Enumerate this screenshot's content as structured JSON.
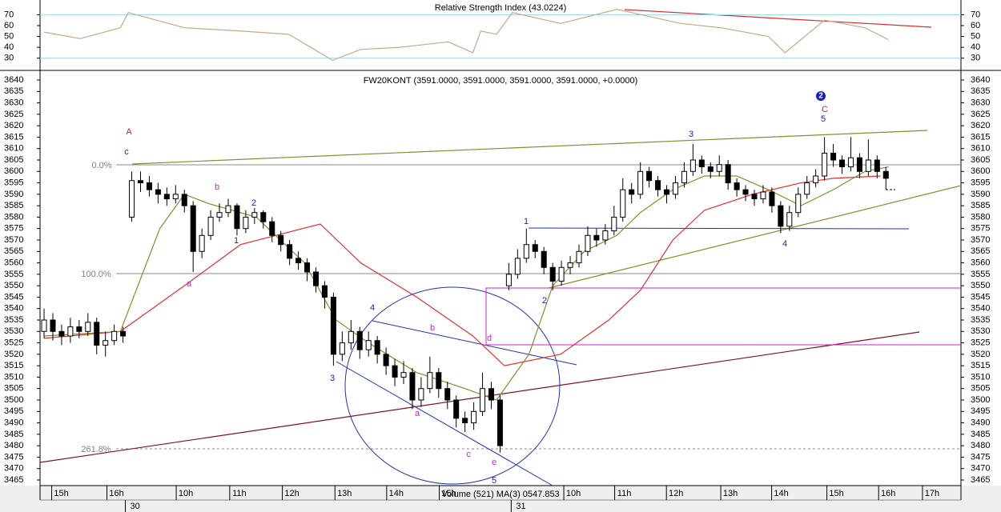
{
  "chart_data": [
    {
      "type": "line",
      "title": "Relative Strength Index (43.0224)",
      "ylim": [
        18.7,
        83.6
      ],
      "yticks": [
        30,
        40,
        50,
        60,
        70
      ],
      "grid_lines": [
        30,
        70
      ],
      "grid_color": "#9fdcf0",
      "xlim": [
        -0.46,
        104.56
      ],
      "series": [
        {
          "color": "#c8a888",
          "x": [
            0,
            4.1,
            8.7,
            9.6,
            16,
            22.4,
            27.9,
            32.9,
            36.1,
            40.6,
            46.1,
            48.9,
            49.8,
            51.6,
            53.4,
            58.9,
            65.3,
            72.6,
            77.2,
            82.6,
            84.5,
            89,
            93.6,
            96.3
          ],
          "values": [
            54,
            48,
            58,
            72,
            58,
            55,
            52,
            28,
            38,
            40,
            45,
            35,
            55,
            52,
            72,
            62,
            75,
            62,
            58,
            50,
            35,
            65,
            58,
            47
          ]
        }
      ]
    },
    {
      "type": "candlestick",
      "title": "FW20KONT (3591.0000, 3591.0000, 3591.0000, 3591.0000, +0.0000)",
      "ylim": [
        3462.55,
        3644.2
      ],
      "yticks": [
        3465,
        3470,
        3475,
        3480,
        3485,
        3490,
        3495,
        3500,
        3505,
        3510,
        3515,
        3520,
        3525,
        3530,
        3535,
        3540,
        3545,
        3550,
        3555,
        3560,
        3565,
        3570,
        3575,
        3580,
        3585,
        3590,
        3595,
        3600,
        3605,
        3610,
        3615,
        3620,
        3625,
        3630,
        3635,
        3640
      ],
      "xlim": [
        -0.46,
        104.56
      ],
      "xticks": [
        {
          "value": 1.6,
          "label": "15h"
        },
        {
          "value": 7.9,
          "label": "16h"
        },
        {
          "value": 15.8,
          "label": "10h"
        },
        {
          "value": 21.9,
          "label": "11h"
        },
        {
          "value": 27.9,
          "label": "12h"
        },
        {
          "value": 33.9,
          "label": "13h"
        },
        {
          "value": 39.8,
          "label": "14h"
        },
        {
          "value": 45.8,
          "label": "15h"
        },
        {
          "value": 60,
          "label": "10h"
        },
        {
          "value": 65.8,
          "label": "11h"
        },
        {
          "value": 71.7,
          "label": "12h"
        },
        {
          "value": 77.9,
          "label": "13h"
        },
        {
          "value": 83.7,
          "label": "14h"
        },
        {
          "value": 90,
          "label": "15h"
        },
        {
          "value": 95.9,
          "label": "16h"
        },
        {
          "value": 100.9,
          "label": "17h"
        }
      ],
      "date_ticks": [
        {
          "value": 10,
          "label": "30"
        },
        {
          "value": 54,
          "label": "31"
        }
      ],
      "volume_label": "Volume (521) MA(3) 0547.853",
      "up_color": "#ffffff",
      "down_color": "#000000",
      "ohlc": [
        [
          3530,
          3540,
          3527,
          3535
        ],
        [
          3535,
          3538,
          3526,
          3530
        ],
        [
          3530,
          3533,
          3524,
          3528
        ],
        [
          3528,
          3536,
          3525,
          3532
        ],
        [
          3532,
          3535,
          3527,
          3530
        ],
        [
          3530,
          3538,
          3528,
          3534
        ],
        [
          3534,
          3536,
          3520,
          3524
        ],
        [
          3524,
          3530,
          3519,
          3526
        ],
        [
          3526,
          3533,
          3524,
          3530
        ],
        [
          3530,
          3532,
          3525,
          3528
        ],
        [
          3580,
          3600,
          3578,
          3596
        ],
        [
          3596,
          3600,
          3591,
          3595
        ],
        [
          3595,
          3598,
          3589,
          3592
        ],
        [
          3592,
          3595,
          3586,
          3590
        ],
        [
          3590,
          3593,
          3585,
          3588
        ],
        [
          3588,
          3594,
          3586,
          3590
        ],
        [
          3590,
          3592,
          3582,
          3585
        ],
        [
          3585,
          3587,
          3556,
          3565
        ],
        [
          3565,
          3575,
          3562,
          3572
        ],
        [
          3572,
          3583,
          3570,
          3580
        ],
        [
          3580,
          3586,
          3578,
          3582
        ],
        [
          3582,
          3588,
          3580,
          3585
        ],
        [
          3585,
          3586,
          3572,
          3575
        ],
        [
          3575,
          3583,
          3573,
          3580
        ],
        [
          3580,
          3584,
          3577,
          3582
        ],
        [
          3582,
          3583,
          3575,
          3578
        ],
        [
          3578,
          3580,
          3569,
          3572
        ],
        [
          3572,
          3574,
          3565,
          3568
        ],
        [
          3568,
          3570,
          3559,
          3562
        ],
        [
          3562,
          3565,
          3557,
          3560
        ],
        [
          3560,
          3562,
          3552,
          3556
        ],
        [
          3556,
          3558,
          3547,
          3550
        ],
        [
          3550,
          3552,
          3540,
          3545
        ],
        [
          3545,
          3547,
          3515,
          3520
        ],
        [
          3520,
          3530,
          3517,
          3525
        ],
        [
          3525,
          3535,
          3522,
          3530
        ],
        [
          3530,
          3532,
          3518,
          3522
        ],
        [
          3522,
          3530,
          3519,
          3526
        ],
        [
          3526,
          3528,
          3516,
          3520
        ],
        [
          3520,
          3523,
          3511,
          3515
        ],
        [
          3515,
          3518,
          3506,
          3510
        ],
        [
          3510,
          3517,
          3507,
          3512
        ],
        [
          3512,
          3514,
          3496,
          3500
        ],
        [
          3500,
          3510,
          3497,
          3505
        ],
        [
          3505,
          3519,
          3503,
          3512
        ],
        [
          3512,
          3514,
          3501,
          3505
        ],
        [
          3505,
          3508,
          3496,
          3500
        ],
        [
          3500,
          3502,
          3488,
          3492
        ],
        [
          3492,
          3495,
          3486,
          3490
        ],
        [
          3490,
          3499,
          3487,
          3495
        ],
        [
          3495,
          3512,
          3493,
          3505
        ],
        [
          3505,
          3508,
          3496,
          3500
        ],
        [
          3500,
          3502,
          3477,
          3480
        ],
        [
          3550,
          3560,
          3548,
          3555
        ],
        [
          3555,
          3566,
          3553,
          3562
        ],
        [
          3562,
          3575,
          3560,
          3568
        ],
        [
          3568,
          3570,
          3562,
          3565
        ],
        [
          3565,
          3567,
          3555,
          3558
        ],
        [
          3558,
          3560,
          3548,
          3552
        ],
        [
          3552,
          3561,
          3550,
          3558
        ],
        [
          3558,
          3563,
          3555,
          3560
        ],
        [
          3560,
          3568,
          3558,
          3565
        ],
        [
          3565,
          3576,
          3563,
          3572
        ],
        [
          3572,
          3575,
          3567,
          3570
        ],
        [
          3570,
          3577,
          3568,
          3574
        ],
        [
          3574,
          3585,
          3572,
          3580
        ],
        [
          3580,
          3597,
          3578,
          3592
        ],
        [
          3592,
          3595,
          3586,
          3590
        ],
        [
          3590,
          3604,
          3588,
          3600
        ],
        [
          3600,
          3602,
          3593,
          3596
        ],
        [
          3596,
          3598,
          3589,
          3592
        ],
        [
          3592,
          3594,
          3586,
          3590
        ],
        [
          3590,
          3598,
          3588,
          3595
        ],
        [
          3595,
          3604,
          3593,
          3600
        ],
        [
          3600,
          3612,
          3598,
          3605
        ],
        [
          3605,
          3607,
          3599,
          3602
        ],
        [
          3602,
          3604,
          3597,
          3600
        ],
        [
          3600,
          3607,
          3598,
          3603
        ],
        [
          3603,
          3605,
          3592,
          3595
        ],
        [
          3595,
          3597,
          3589,
          3592
        ],
        [
          3592,
          3594,
          3587,
          3590
        ],
        [
          3590,
          3592,
          3585,
          3588
        ],
        [
          3588,
          3594,
          3586,
          3591
        ],
        [
          3591,
          3593,
          3582,
          3585
        ],
        [
          3585,
          3587,
          3573,
          3576
        ],
        [
          3576,
          3585,
          3574,
          3582
        ],
        [
          3582,
          3593,
          3580,
          3590
        ],
        [
          3590,
          3598,
          3588,
          3595
        ],
        [
          3595,
          3601,
          3593,
          3598
        ],
        [
          3598,
          3615,
          3596,
          3608
        ],
        [
          3608,
          3612,
          3602,
          3605
        ],
        [
          3605,
          3607,
          3599,
          3602
        ],
        [
          3602,
          3615,
          3600,
          3606
        ],
        [
          3606,
          3608,
          3597,
          3600
        ],
        [
          3600,
          3614,
          3598,
          3605
        ],
        [
          3605,
          3607,
          3597,
          3600
        ],
        [
          3600,
          3602,
          3592,
          3597
        ]
      ],
      "series": [
        {
          "color": "#e03030",
          "x": [
            0,
            8.7,
            16,
            22.4,
            31.5,
            36.1,
            42.5,
            48.9,
            52.5,
            58.9,
            64.4,
            68,
            71.7,
            75.3,
            80.8,
            86.3,
            90,
            95.4
          ],
          "values": [
            3527,
            3530,
            3550,
            3568,
            3577,
            3560,
            3545,
            3528,
            3515,
            3520,
            3535,
            3548,
            3570,
            3583,
            3590,
            3595,
            3597,
            3598
          ]
        },
        {
          "color": "#8a8a30",
          "x": [
            0,
            8.7,
            13.2,
            16,
            18.7,
            24.2,
            29.7,
            33.3,
            37,
            42.5,
            48,
            51.6,
            55.3,
            58,
            61.6,
            65.3,
            68,
            71.7,
            75.3,
            79,
            82.6,
            86.3,
            90,
            93.6,
            96.3
          ],
          "values": [
            3528,
            3530,
            3575,
            3590,
            3586,
            3580,
            3560,
            3535,
            3525,
            3512,
            3505,
            3500,
            3520,
            3550,
            3565,
            3572,
            3582,
            3592,
            3598,
            3598,
            3592,
            3585,
            3592,
            3600,
            3602
          ]
        }
      ],
      "annotations": [
        {
          "text": "A",
          "color": "#d02020"
        },
        {
          "text": "c",
          "color": "#2020c0"
        },
        {
          "text": "b",
          "color": "#d020d0"
        },
        {
          "text": "2",
          "color": "#2020c0"
        },
        {
          "text": "1",
          "color": "#2020c0"
        },
        {
          "text": "a",
          "color": "#d020d0"
        },
        {
          "text": "3",
          "color": "#2020c0"
        },
        {
          "text": "4",
          "color": "#2020c0"
        },
        {
          "text": "b",
          "color": "#d020d0"
        },
        {
          "text": "a",
          "color": "#d020d0"
        },
        {
          "text": "c",
          "color": "#d020d0"
        },
        {
          "text": "e",
          "color": "#d020d0"
        },
        {
          "text": "5",
          "color": "#2020c0"
        },
        {
          "text": "d",
          "color": "#d020d0"
        },
        {
          "text": "1",
          "color": "#2020c0"
        },
        {
          "text": "2",
          "color": "#2020c0"
        },
        {
          "text": "3",
          "color": "#2020c0"
        },
        {
          "text": "4",
          "color": "#2020c0"
        },
        {
          "text": "5",
          "color": "#2020c0"
        },
        {
          "text": "C",
          "color": "#d02020"
        },
        {
          "text": "2",
          "color": "#ffffff"
        },
        {
          "text": "0.0%",
          "color": "#808080"
        },
        {
          "text": "100.0%",
          "color": "#808080"
        },
        {
          "text": "261.8%",
          "color": "#808080"
        }
      ]
    }
  ]
}
